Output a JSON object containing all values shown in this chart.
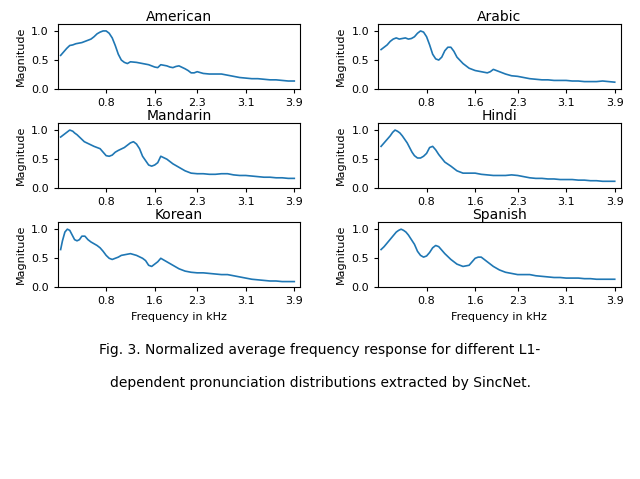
{
  "titles": [
    "American",
    "Arabic",
    "Mandarin",
    "Hindi",
    "Korean",
    "Spanish"
  ],
  "line_color": "#1f77b4",
  "line_width": 1.2,
  "xlim": [
    0.0,
    4.0
  ],
  "ylim": [
    0.0,
    1.12
  ],
  "yticks": [
    0.0,
    0.5,
    1.0
  ],
  "xticks": [
    0.8,
    1.6,
    2.3,
    3.1,
    3.9
  ],
  "xticklabels": [
    "0.8",
    "1.6",
    "2.3",
    "3.1",
    "3.9"
  ],
  "xlabel": "Frequency in kHz",
  "ylabel": "Magnitude",
  "caption_line1": "Fig. 3. Normalized average frequency response for different L1-",
  "caption_line2": "dependent pronunciation distributions extracted by SincNet.",
  "caption_fontsize": 10,
  "title_fontsize": 10,
  "label_fontsize": 8,
  "tick_fontsize": 8,
  "curves": {
    "American": {
      "x": [
        0.05,
        0.1,
        0.15,
        0.2,
        0.25,
        0.3,
        0.35,
        0.4,
        0.45,
        0.5,
        0.55,
        0.6,
        0.65,
        0.7,
        0.75,
        0.8,
        0.85,
        0.9,
        0.95,
        1.0,
        1.05,
        1.1,
        1.15,
        1.2,
        1.3,
        1.4,
        1.5,
        1.6,
        1.65,
        1.7,
        1.75,
        1.8,
        1.85,
        1.9,
        1.95,
        2.0,
        2.1,
        2.15,
        2.2,
        2.25,
        2.3,
        2.4,
        2.5,
        2.6,
        2.7,
        2.8,
        2.9,
        3.0,
        3.1,
        3.2,
        3.3,
        3.4,
        3.5,
        3.6,
        3.7,
        3.8,
        3.9
      ],
      "y": [
        0.58,
        0.64,
        0.7,
        0.75,
        0.76,
        0.78,
        0.79,
        0.8,
        0.82,
        0.84,
        0.86,
        0.9,
        0.95,
        0.98,
        1.0,
        1.0,
        0.96,
        0.88,
        0.75,
        0.6,
        0.5,
        0.46,
        0.44,
        0.47,
        0.46,
        0.44,
        0.42,
        0.38,
        0.37,
        0.42,
        0.41,
        0.4,
        0.38,
        0.37,
        0.39,
        0.4,
        0.35,
        0.32,
        0.28,
        0.28,
        0.3,
        0.27,
        0.26,
        0.26,
        0.26,
        0.24,
        0.22,
        0.2,
        0.19,
        0.18,
        0.18,
        0.17,
        0.16,
        0.16,
        0.15,
        0.14,
        0.14
      ]
    },
    "Arabic": {
      "x": [
        0.05,
        0.1,
        0.15,
        0.2,
        0.25,
        0.3,
        0.35,
        0.4,
        0.45,
        0.5,
        0.55,
        0.6,
        0.65,
        0.7,
        0.75,
        0.8,
        0.85,
        0.9,
        0.95,
        1.0,
        1.05,
        1.1,
        1.15,
        1.2,
        1.25,
        1.3,
        1.4,
        1.5,
        1.6,
        1.7,
        1.8,
        1.85,
        1.9,
        1.95,
        2.0,
        2.1,
        2.2,
        2.3,
        2.4,
        2.5,
        2.6,
        2.7,
        2.8,
        2.9,
        3.0,
        3.1,
        3.2,
        3.3,
        3.4,
        3.5,
        3.6,
        3.7,
        3.8,
        3.9
      ],
      "y": [
        0.68,
        0.72,
        0.76,
        0.82,
        0.86,
        0.88,
        0.86,
        0.87,
        0.88,
        0.86,
        0.87,
        0.9,
        0.96,
        1.0,
        0.98,
        0.9,
        0.76,
        0.6,
        0.52,
        0.5,
        0.55,
        0.66,
        0.72,
        0.72,
        0.65,
        0.55,
        0.44,
        0.36,
        0.32,
        0.3,
        0.28,
        0.3,
        0.34,
        0.32,
        0.3,
        0.26,
        0.23,
        0.22,
        0.2,
        0.18,
        0.17,
        0.16,
        0.16,
        0.15,
        0.15,
        0.15,
        0.14,
        0.14,
        0.13,
        0.13,
        0.13,
        0.14,
        0.13,
        0.12
      ]
    },
    "Mandarin": {
      "x": [
        0.05,
        0.1,
        0.15,
        0.2,
        0.25,
        0.28,
        0.32,
        0.36,
        0.4,
        0.44,
        0.48,
        0.52,
        0.56,
        0.6,
        0.65,
        0.7,
        0.75,
        0.8,
        0.85,
        0.9,
        0.95,
        1.0,
        1.1,
        1.2,
        1.25,
        1.3,
        1.35,
        1.4,
        1.5,
        1.55,
        1.6,
        1.65,
        1.7,
        1.8,
        1.9,
        2.0,
        2.1,
        2.2,
        2.3,
        2.4,
        2.5,
        2.6,
        2.7,
        2.8,
        2.9,
        3.0,
        3.1,
        3.2,
        3.3,
        3.4,
        3.5,
        3.6,
        3.7,
        3.8,
        3.9
      ],
      "y": [
        0.88,
        0.92,
        0.96,
        1.0,
        0.98,
        0.95,
        0.92,
        0.88,
        0.84,
        0.8,
        0.78,
        0.76,
        0.74,
        0.72,
        0.7,
        0.68,
        0.62,
        0.56,
        0.55,
        0.57,
        0.62,
        0.65,
        0.7,
        0.78,
        0.8,
        0.76,
        0.68,
        0.55,
        0.4,
        0.38,
        0.4,
        0.44,
        0.55,
        0.5,
        0.42,
        0.36,
        0.3,
        0.26,
        0.25,
        0.25,
        0.24,
        0.24,
        0.25,
        0.25,
        0.23,
        0.22,
        0.22,
        0.21,
        0.2,
        0.19,
        0.19,
        0.18,
        0.18,
        0.17,
        0.17
      ]
    },
    "Hindi": {
      "x": [
        0.05,
        0.1,
        0.15,
        0.2,
        0.24,
        0.28,
        0.32,
        0.36,
        0.4,
        0.44,
        0.48,
        0.52,
        0.56,
        0.6,
        0.65,
        0.7,
        0.75,
        0.8,
        0.85,
        0.9,
        0.95,
        1.0,
        1.1,
        1.2,
        1.3,
        1.4,
        1.5,
        1.6,
        1.7,
        1.8,
        1.9,
        2.0,
        2.1,
        2.2,
        2.3,
        2.4,
        2.5,
        2.6,
        2.7,
        2.8,
        2.9,
        3.0,
        3.1,
        3.2,
        3.3,
        3.4,
        3.5,
        3.6,
        3.7,
        3.8,
        3.9
      ],
      "y": [
        0.72,
        0.78,
        0.84,
        0.9,
        0.96,
        1.0,
        0.98,
        0.95,
        0.9,
        0.84,
        0.78,
        0.7,
        0.62,
        0.56,
        0.52,
        0.52,
        0.55,
        0.6,
        0.7,
        0.72,
        0.66,
        0.58,
        0.45,
        0.38,
        0.3,
        0.26,
        0.26,
        0.26,
        0.24,
        0.23,
        0.22,
        0.22,
        0.22,
        0.23,
        0.22,
        0.2,
        0.18,
        0.17,
        0.17,
        0.16,
        0.16,
        0.15,
        0.15,
        0.15,
        0.14,
        0.14,
        0.13,
        0.13,
        0.12,
        0.12,
        0.12
      ]
    },
    "Korean": {
      "x": [
        0.05,
        0.08,
        0.12,
        0.16,
        0.2,
        0.24,
        0.28,
        0.32,
        0.36,
        0.4,
        0.45,
        0.5,
        0.55,
        0.6,
        0.65,
        0.7,
        0.75,
        0.8,
        0.85,
        0.9,
        0.95,
        1.0,
        1.05,
        1.1,
        1.2,
        1.3,
        1.4,
        1.45,
        1.5,
        1.55,
        1.6,
        1.65,
        1.7,
        1.8,
        1.9,
        2.0,
        2.1,
        2.2,
        2.3,
        2.4,
        2.5,
        2.6,
        2.7,
        2.8,
        2.9,
        3.0,
        3.1,
        3.2,
        3.3,
        3.4,
        3.5,
        3.6,
        3.7,
        3.8,
        3.9
      ],
      "y": [
        0.65,
        0.8,
        0.95,
        1.0,
        0.98,
        0.9,
        0.82,
        0.8,
        0.82,
        0.88,
        0.88,
        0.82,
        0.78,
        0.75,
        0.72,
        0.68,
        0.62,
        0.55,
        0.5,
        0.48,
        0.5,
        0.52,
        0.55,
        0.56,
        0.58,
        0.55,
        0.5,
        0.46,
        0.38,
        0.36,
        0.4,
        0.44,
        0.5,
        0.44,
        0.38,
        0.32,
        0.28,
        0.26,
        0.25,
        0.25,
        0.24,
        0.23,
        0.22,
        0.22,
        0.2,
        0.18,
        0.16,
        0.14,
        0.13,
        0.12,
        0.11,
        0.11,
        0.1,
        0.1,
        0.1
      ]
    },
    "Spanish": {
      "x": [
        0.05,
        0.1,
        0.14,
        0.18,
        0.22,
        0.26,
        0.3,
        0.34,
        0.38,
        0.42,
        0.46,
        0.5,
        0.55,
        0.6,
        0.65,
        0.7,
        0.75,
        0.8,
        0.85,
        0.9,
        0.95,
        1.0,
        1.1,
        1.2,
        1.3,
        1.4,
        1.5,
        1.55,
        1.6,
        1.65,
        1.7,
        1.8,
        1.9,
        2.0,
        2.1,
        2.2,
        2.3,
        2.4,
        2.5,
        2.6,
        2.7,
        2.8,
        2.9,
        3.0,
        3.1,
        3.2,
        3.3,
        3.4,
        3.5,
        3.6,
        3.7,
        3.8,
        3.9
      ],
      "y": [
        0.65,
        0.7,
        0.75,
        0.8,
        0.85,
        0.9,
        0.95,
        0.98,
        1.0,
        0.98,
        0.95,
        0.9,
        0.82,
        0.74,
        0.62,
        0.55,
        0.52,
        0.54,
        0.6,
        0.68,
        0.72,
        0.7,
        0.58,
        0.48,
        0.4,
        0.36,
        0.38,
        0.44,
        0.5,
        0.52,
        0.52,
        0.44,
        0.36,
        0.3,
        0.26,
        0.24,
        0.22,
        0.22,
        0.22,
        0.2,
        0.19,
        0.18,
        0.17,
        0.17,
        0.16,
        0.16,
        0.16,
        0.15,
        0.15,
        0.14,
        0.14,
        0.14,
        0.14
      ]
    }
  }
}
